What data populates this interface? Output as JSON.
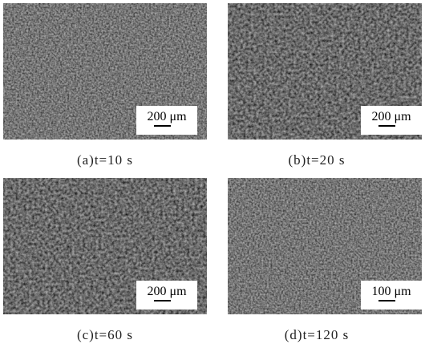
{
  "panels": [
    {
      "scale_bar": "200 μm",
      "caption": "(a)t=10 s"
    },
    {
      "scale_bar": "200 μm",
      "caption": "(b)t=20 s"
    },
    {
      "scale_bar": "200 μm",
      "caption": "(c)t=60 s"
    },
    {
      "scale_bar": "100 μm",
      "caption": "(d)t=120 s"
    }
  ]
}
